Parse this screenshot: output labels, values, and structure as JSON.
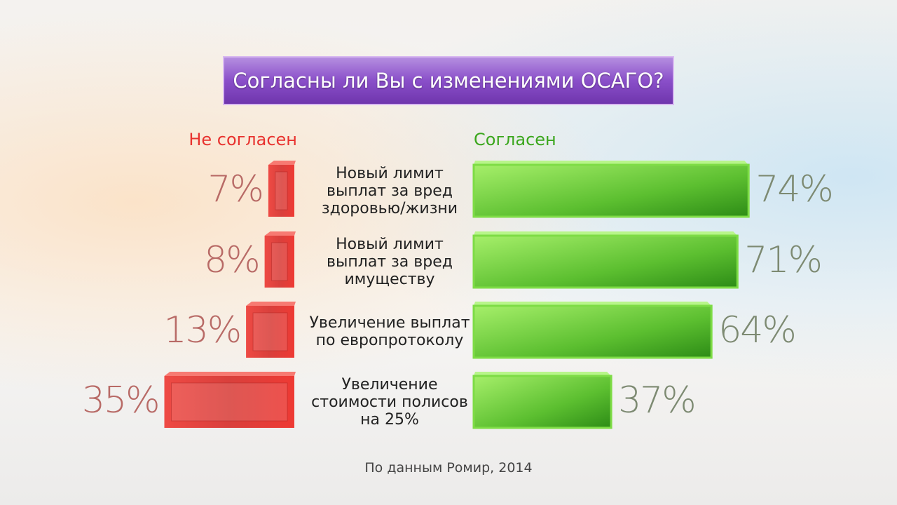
{
  "chart_data": {
    "type": "diverging-bar",
    "title": "Согласны ли Вы с изменениями ОСАГО?",
    "categories": [
      "Новый лимит выплат за вред здоровью/жизни",
      "Новый лимит выплат за вред имуществу",
      "Увеличение выплат по европротоколу",
      "Увеличение стоимости полисов на 25%"
    ],
    "series": [
      {
        "name": "Не согласен",
        "color": "#e8322e",
        "values": [
          7,
          8,
          13,
          35
        ],
        "value_labels": [
          "7%",
          "8%",
          "13%",
          "35%"
        ]
      },
      {
        "name": "Согласен",
        "color": "#4ec02a",
        "values": [
          74,
          71,
          64,
          37
        ],
        "value_labels": [
          "74%",
          "71%",
          "64%",
          "37%"
        ]
      }
    ],
    "source": "По данным Ромир, 2014"
  }
}
